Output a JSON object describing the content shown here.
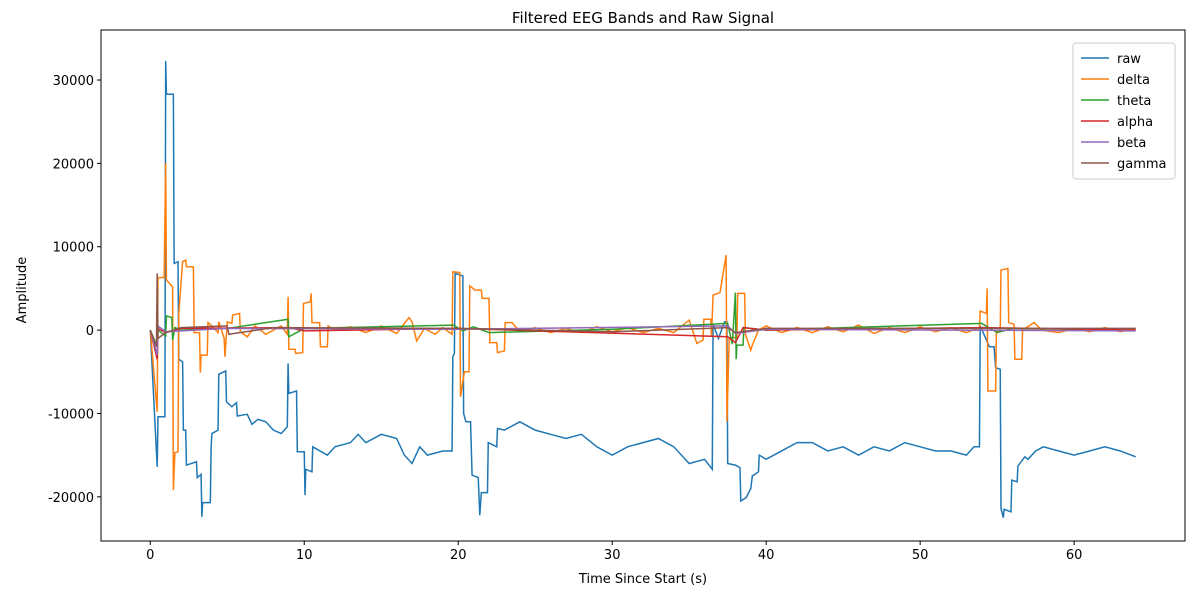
{
  "chart_data": {
    "type": "line",
    "title": "Filtered EEG Bands and Raw Signal",
    "x_label": "Time Since Start (s)",
    "y_label": "Amplitude",
    "xlim": [
      -3.2,
      67.2
    ],
    "ylim": [
      -25300,
      36000
    ],
    "xticks": [
      0,
      10,
      20,
      30,
      40,
      50,
      60
    ],
    "yticks": [
      -20000,
      -10000,
      0,
      10000,
      20000,
      30000
    ],
    "legend": "upper right",
    "series": [
      {
        "name": "raw",
        "color": "#1f77b4",
        "x": [
          0,
          0.45,
          0.5,
          0.95,
          1.0,
          1.05,
          1.5,
          1.55,
          1.8,
          1.85,
          2.1,
          2.15,
          2.3,
          2.35,
          3.0,
          3.05,
          3.3,
          3.35,
          3.4,
          3.9,
          3.95,
          4.0,
          4.4,
          4.45,
          4.9,
          4.95,
          5.3,
          5.6,
          5.65,
          6.3,
          6.6,
          7.0,
          7.5,
          8.0,
          8.5,
          8.9,
          8.95,
          9.0,
          9.5,
          9.55,
          10.0,
          10.05,
          10.1,
          10.5,
          10.55,
          11.5,
          12,
          13,
          13.5,
          14,
          15,
          16,
          16.5,
          17,
          17.5,
          18,
          19,
          19.6,
          19.65,
          19.75,
          19.8,
          20.3,
          20.35,
          20.5,
          20.8,
          20.9,
          21.3,
          21.4,
          21.5,
          21.9,
          21.95,
          22.5,
          22.55,
          23,
          24,
          25,
          26,
          27,
          28,
          29,
          30,
          31,
          32,
          33,
          34,
          35,
          36,
          36.5,
          36.55,
          36.9,
          37.3,
          37.45,
          37.5,
          38.0,
          38.3,
          38.35,
          38.7,
          39.0,
          39.1,
          39.5,
          39.55,
          40,
          41,
          42,
          43,
          44,
          45,
          46,
          47,
          48,
          49,
          50,
          51,
          52,
          53,
          53.5,
          53.85,
          53.9,
          54.5,
          54.8,
          54.9,
          55.2,
          55.25,
          55.4,
          55.45,
          55.9,
          55.95,
          56.3,
          56.35,
          56.8,
          57,
          57.5,
          58,
          59,
          60,
          61,
          62,
          63,
          64
        ],
        "values": [
          0,
          -16400,
          -10400,
          -10400,
          32300,
          28300,
          28300,
          8000,
          8200,
          -3500,
          -3800,
          -12000,
          -12000,
          -16200,
          -15800,
          -17700,
          -17300,
          -22400,
          -20700,
          -20700,
          -14200,
          -12400,
          -12000,
          -5300,
          -4900,
          -8600,
          -9200,
          -8700,
          -10300,
          -10100,
          -11300,
          -10700,
          -11000,
          -12000,
          -12400,
          -11600,
          -4000,
          -7600,
          -7300,
          -14600,
          -14600,
          -19800,
          -16700,
          -17000,
          -14000,
          -15000,
          -14000,
          -13500,
          -12500,
          -13500,
          -12500,
          -13000,
          -15000,
          -16000,
          -14000,
          -15000,
          -14500,
          -14500,
          -3200,
          -2800,
          6800,
          6500,
          -10000,
          -11000,
          -11000,
          -17400,
          -17700,
          -22200,
          -19500,
          -19500,
          -13500,
          -14000,
          -11800,
          -12000,
          -11000,
          -12000,
          -12500,
          -13000,
          -12500,
          -14000,
          -15000,
          -14000,
          -13500,
          -13000,
          -14000,
          -16000,
          -15500,
          -16700,
          700,
          -1000,
          1000,
          1000,
          -16000,
          -16200,
          -16500,
          -20500,
          -20100,
          -19000,
          -17500,
          -17000,
          -15000,
          -15500,
          -14500,
          -13500,
          -13500,
          -14500,
          -14000,
          -15000,
          -14000,
          -14500,
          -13500,
          -14000,
          -14500,
          -14500,
          -15000,
          -14000,
          -14000,
          500,
          -2000,
          -2000,
          -4500,
          -4700,
          -21400,
          -22500,
          -21500,
          -21800,
          -18000,
          -18200,
          -16300,
          -15200,
          -15500,
          -14500,
          -14000,
          -14500,
          -15000,
          -14500,
          -14000,
          -14500,
          -15200
        ]
      },
      {
        "name": "delta",
        "color": "#ff7f0e",
        "x": [
          0,
          0.45,
          0.5,
          0.9,
          1.0,
          1.05,
          1.45,
          1.5,
          1.6,
          1.8,
          1.85,
          2.1,
          2.3,
          2.35,
          2.8,
          2.85,
          3.2,
          3.25,
          3.3,
          3.7,
          3.75,
          4,
          4.4,
          4.45,
          4.8,
          4.85,
          5.0,
          5.3,
          5.35,
          5.8,
          5.85,
          6.3,
          6.8,
          7.5,
          8.5,
          8.9,
          8.95,
          9.0,
          9.4,
          9.45,
          9.9,
          9.95,
          10.4,
          10.45,
          10.5,
          11,
          11.05,
          11.5,
          11.55,
          12,
          13,
          14,
          15,
          16,
          16.8,
          17,
          17.3,
          17.8,
          18.5,
          19,
          19.6,
          19.65,
          20.1,
          20.15,
          20.4,
          20.7,
          20.75,
          21.1,
          21.5,
          21.55,
          22.0,
          22.05,
          22.5,
          22.55,
          23,
          23.05,
          23.5,
          24,
          25,
          26,
          27,
          28,
          29,
          30,
          31,
          32,
          33,
          34,
          35,
          35.5,
          35.9,
          35.95,
          36.4,
          36.45,
          36.55,
          37,
          37.4,
          37.45,
          37.6,
          38.1,
          38.15,
          38.6,
          38.65,
          39.0,
          39.1,
          39.5,
          40,
          41,
          42,
          43,
          44,
          45,
          46,
          47,
          48,
          49,
          50,
          51,
          52,
          53,
          53.85,
          53.9,
          54.3,
          54.35,
          54.4,
          54.9,
          54.95,
          55.2,
          55.25,
          55.7,
          55.75,
          56.1,
          56.15,
          56.6,
          56.65,
          57.4,
          57.9,
          59,
          60,
          61,
          62,
          63,
          64
        ],
        "values": [
          0,
          -9800,
          6300,
          6300,
          20000,
          6000,
          5200,
          -19200,
          -14700,
          -14600,
          2000,
          8200,
          8400,
          7600,
          7600,
          -300,
          -300,
          -5100,
          -3000,
          -3000,
          900,
          500,
          -300,
          1000,
          -1000,
          -3200,
          1000,
          800,
          1800,
          2000,
          -200,
          -800,
          500,
          -500,
          500,
          -500,
          4000,
          -2300,
          -2300,
          -2800,
          -2700,
          3200,
          3400,
          4400,
          900,
          900,
          -2000,
          -2000,
          500,
          0,
          400,
          -300,
          500,
          -400,
          1500,
          1000,
          -1300,
          200,
          -500,
          300,
          -500,
          7000,
          6900,
          -8000,
          -5000,
          -5000,
          5300,
          4800,
          4800,
          3800,
          3800,
          -1500,
          -1500,
          -2700,
          -2500,
          900,
          900,
          -200,
          300,
          -300,
          200,
          -300,
          400,
          -200,
          300,
          -300,
          200,
          -300,
          1200,
          -1600,
          -1200,
          1300,
          1300,
          -700,
          4200,
          4500,
          9000,
          -11000,
          -900,
          -900,
          4400,
          4400,
          -500,
          -2400,
          -1800,
          0,
          500,
          -300,
          300,
          -300,
          400,
          -200,
          600,
          -400,
          300,
          -300,
          400,
          -200,
          300,
          -300,
          300,
          2300,
          2000,
          5000,
          -7300,
          -7300,
          -200,
          -200,
          7200,
          7400,
          900,
          700,
          -3500,
          -3500,
          0,
          900,
          0,
          -300,
          200,
          -200,
          300,
          -200,
          200
        ]
      },
      {
        "name": "theta",
        "color": "#2ca02c",
        "x": [
          0,
          0.45,
          0.5,
          1,
          1.05,
          1.4,
          1.45,
          1.6,
          2,
          5,
          8.95,
          9.0,
          10,
          19.7,
          20.3,
          21,
          22,
          30,
          37.5,
          37.8,
          38.0,
          38.05,
          38.1,
          38.5,
          38.55,
          40,
          54,
          55,
          56,
          64
        ],
        "values": [
          0,
          -2000,
          0,
          -700,
          1700,
          1500,
          -1200,
          300,
          0,
          200,
          1300,
          -800,
          200,
          600,
          -100,
          400,
          -300,
          100,
          800,
          -1700,
          4500,
          -3500,
          -1800,
          -1800,
          300,
          0,
          800,
          -300,
          200,
          0
        ]
      },
      {
        "name": "alpha",
        "color": "#d62728",
        "x": [
          0,
          0.45,
          0.5,
          1,
          2,
          9,
          10,
          20,
          37.5,
          38,
          38.5,
          40,
          54,
          64
        ],
        "values": [
          0,
          -3500,
          200,
          -300,
          200,
          300,
          -100,
          200,
          -800,
          -1500,
          300,
          0,
          300,
          0
        ]
      },
      {
        "name": "beta",
        "color": "#9467bd",
        "x": [
          0,
          0.45,
          0.5,
          1,
          5,
          20,
          37.5,
          38,
          40,
          64
        ],
        "values": [
          0,
          -3000,
          500,
          -200,
          200,
          100,
          500,
          -400,
          100,
          -100
        ]
      },
      {
        "name": "gamma",
        "color": "#8c564b",
        "x": [
          0,
          0.4,
          0.45,
          0.5,
          1,
          2,
          5,
          5.1,
          8,
          20,
          30,
          37.5,
          38,
          40,
          64
        ],
        "values": [
          0,
          -2000,
          6800,
          -1000,
          -300,
          300,
          500,
          -500,
          300,
          200,
          -200,
          300,
          -300,
          200,
          200
        ]
      }
    ]
  }
}
